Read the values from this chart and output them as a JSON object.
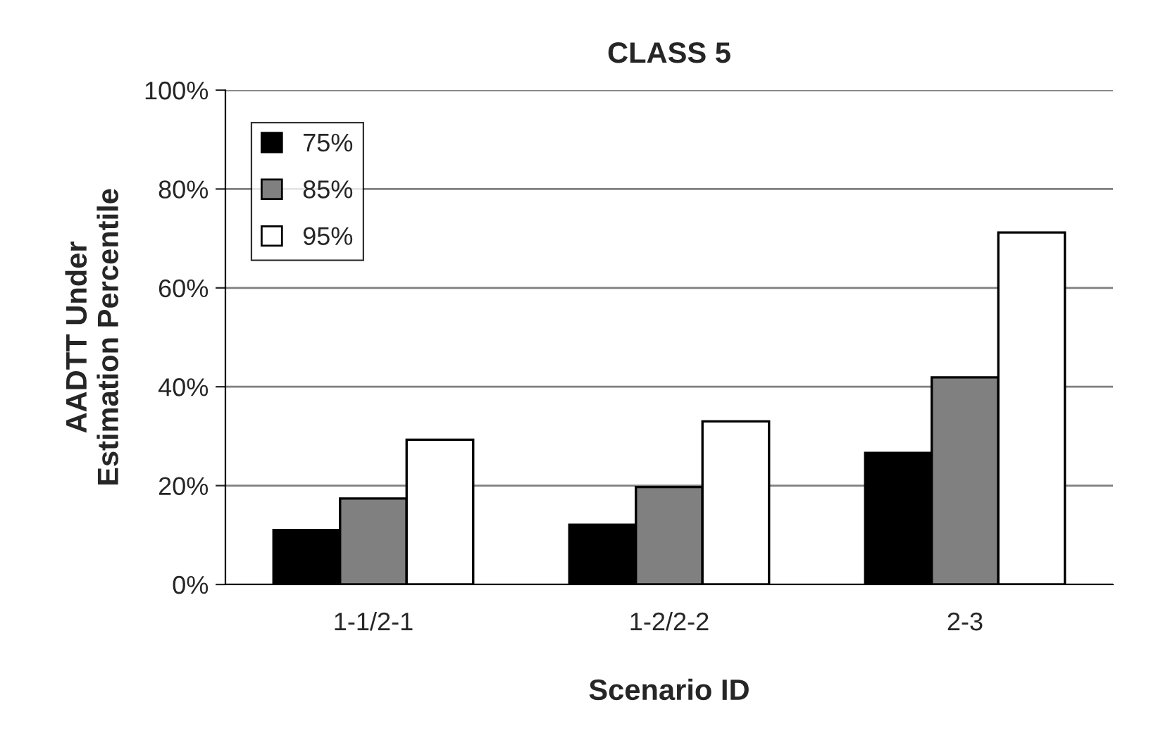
{
  "chart_data": {
    "type": "bar",
    "title": "CLASS 5",
    "xlabel": "Scenario ID",
    "ylabel": "AADTT Under\nEstimation Percentile",
    "categories": [
      "1-1/2-1",
      "1-2/2-2",
      "2-3"
    ],
    "series": [
      {
        "name": "75%",
        "color": "#000000",
        "values": [
          11.0,
          12.1,
          26.6
        ]
      },
      {
        "name": "85%",
        "color": "#808080",
        "values": [
          17.4,
          19.7,
          41.9
        ]
      },
      {
        "name": "95%",
        "color": "#ffffff",
        "values": [
          29.3,
          33.0,
          71.2
        ]
      }
    ],
    "ylim": [
      0,
      100
    ],
    "yticks": [
      {
        "value": 0,
        "label": "0%"
      },
      {
        "value": 20,
        "label": "20%"
      },
      {
        "value": 40,
        "label": "40%"
      },
      {
        "value": 60,
        "label": "60%"
      },
      {
        "value": 80,
        "label": "80%"
      },
      {
        "value": 100,
        "label": "100%"
      }
    ],
    "grid": "y",
    "legend": "top left"
  }
}
